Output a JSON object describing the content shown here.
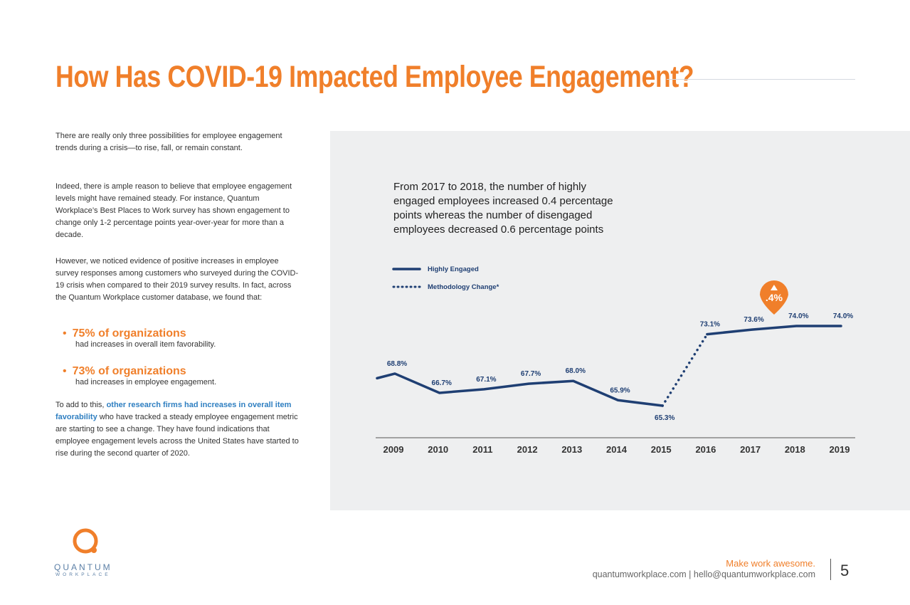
{
  "header": {
    "title": "How Has COVID-19 Impacted Employee Engagement?"
  },
  "body": {
    "paragraphs": [
      "There are really only three possibilities for employee engagement trends during a crisis—to rise, fall, or remain constant.",
      "Indeed, there is ample reason to believe that employee engagement levels might have remained steady. For instance, Quantum Workplace’s Best Places to Work survey has shown engagement to change only 1-2 percentage points year-over-year for more than a decade.",
      "However, we noticed evidence of positive increases in employee survey responses among customers who surveyed during the COVID-19 crisis when compared to their 2019 survey results. In fact, across the Quantum Workplace customer database, we found that:"
    ],
    "bullets": [
      {
        "stat": "75% of organizations",
        "text": "had increases in overall item favorability."
      },
      {
        "stat": "73% of organizations",
        "text": "had increases in employee engagement."
      }
    ],
    "closing": {
      "lead": "To add to this,",
      "link": "other research firms had increases in overall item favorability",
      "rest": "who have tracked a steady employee engagement metric are starting to see a change. They have found indications that employee engagement levels across the United States have started to rise during the second quarter of 2020."
    }
  },
  "chart_data": {
    "type": "line",
    "annotation": "From 2017 to 2018, the number of highly engaged employees increased 0.4 percentage points whereas the number of disengaged employees decreased 0.6 percentage points",
    "callout": ".4%",
    "categories": [
      null,
      "2009",
      "2010",
      "2011",
      "2012",
      "2013",
      "2014",
      "2015",
      "2016",
      "2017",
      "2018",
      "2019"
    ],
    "series": [
      {
        "name": "Highly Engaged",
        "color": "#1f3f73",
        "style": "solid",
        "values": [
          68.3,
          68.8,
          66.7,
          67.1,
          67.7,
          68.0,
          65.9,
          65.3,
          73.1,
          73.6,
          74.0,
          74.0
        ],
        "value_labels": [
          null,
          "68.8%",
          "66.7%",
          "67.1%",
          "67.7%",
          "68.0%",
          "65.9%",
          "65.3%",
          "73.1%",
          "73.6%",
          "74.0%",
          "74.0%"
        ]
      },
      {
        "name": "Methodology Change*",
        "color": "#1f3f73",
        "style": "dotted",
        "values": [
          null,
          null,
          null,
          null,
          null,
          null,
          null,
          65.3,
          73.1,
          null,
          null,
          null
        ]
      }
    ]
  },
  "footer": {
    "logo": "QUANTUM",
    "logo_sub": "WORKPLACE",
    "tagline": "Make work awesome.",
    "contact": "quantumworkplace.com | hello@quantumworkplace.com",
    "page": "5"
  }
}
